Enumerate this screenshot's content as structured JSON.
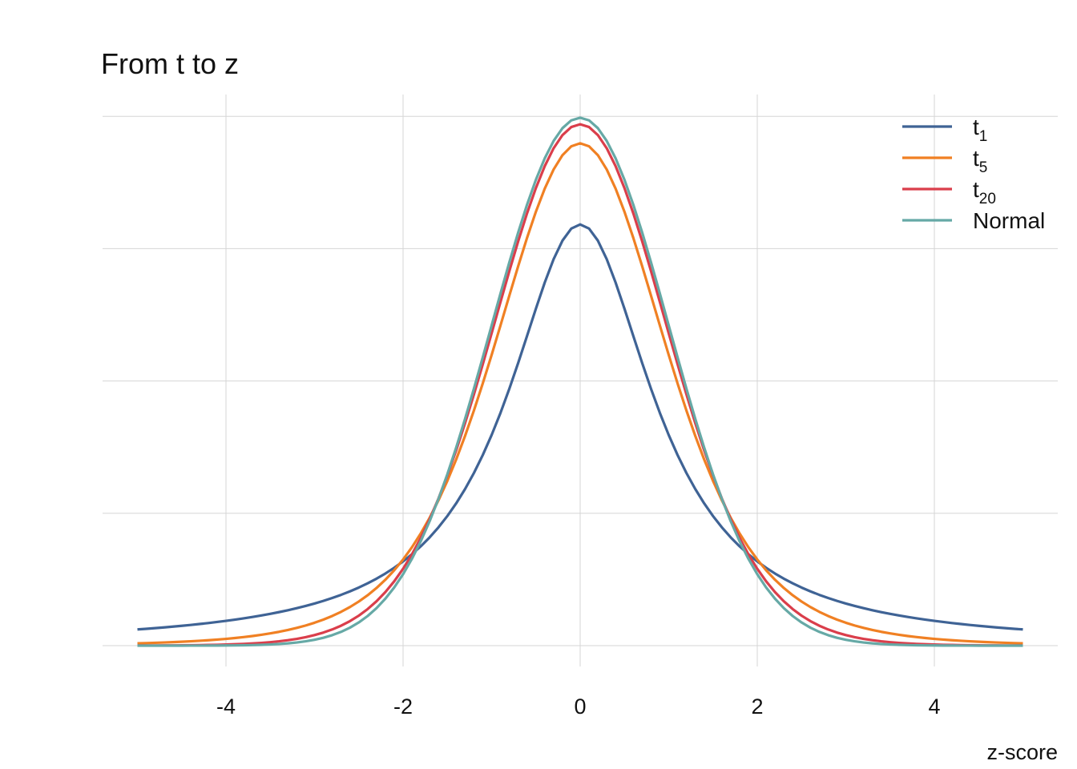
{
  "chart_data": {
    "type": "line",
    "title": "From t to z",
    "xlabel": "z-score",
    "ylabel": "",
    "xlim": [
      -5,
      5
    ],
    "ylim": [
      0,
      0.4
    ],
    "xticks": [
      -4,
      -2,
      0,
      2,
      4
    ],
    "xtick_labels": [
      "-4",
      "-2",
      "0",
      "2",
      "4"
    ],
    "yticks": [
      0,
      0.1,
      0.2,
      0.3,
      0.4
    ],
    "ytick_labels": [],
    "grid": true,
    "legend_position": "top-right",
    "series": [
      {
        "name": "t",
        "subscript": "1",
        "df": 1,
        "color": "#3f6395"
      },
      {
        "name": "t",
        "subscript": "5",
        "df": 5,
        "color": "#f08023"
      },
      {
        "name": "t",
        "subscript": "20",
        "df": 20,
        "color": "#da3e4b"
      },
      {
        "name": "Normal",
        "subscript": "",
        "df": null,
        "color": "#66a9a6"
      }
    ]
  }
}
